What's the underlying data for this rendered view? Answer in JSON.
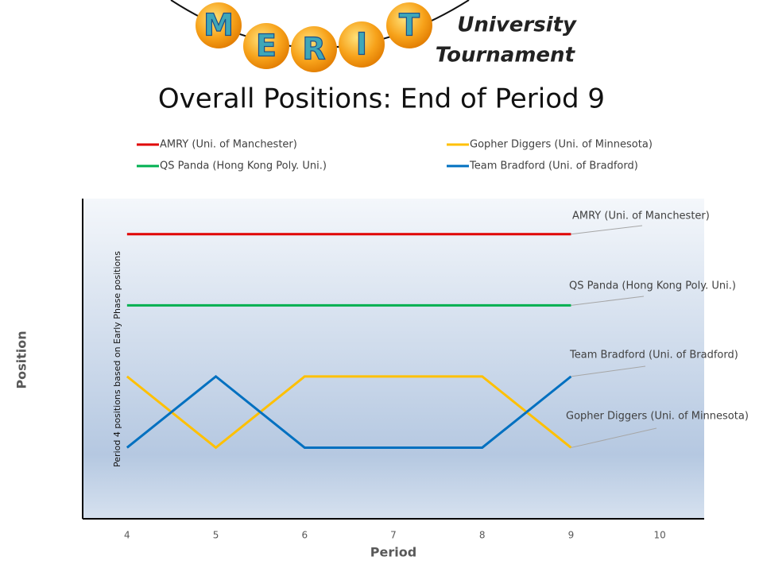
{
  "logo": {
    "letters": [
      "M",
      "E",
      "R",
      "I",
      "T"
    ],
    "caption": [
      "University",
      "Tournament"
    ]
  },
  "chart_data": {
    "type": "line",
    "title": "Overall Positions: End of Period 9",
    "x_label": "Period",
    "y_label": "Position",
    "annotation": "Period 4 positions based on Early Phase positions",
    "x": [
      4,
      5,
      6,
      7,
      8,
      9
    ],
    "xlim": [
      3.5,
      10.5
    ],
    "xticks": [
      4,
      5,
      6,
      7,
      8,
      9,
      10
    ],
    "ylim": [
      5,
      0.5
    ],
    "series": [
      {
        "name": "AMRY (Uni. of Manchester)",
        "color": "#e00000",
        "values": [
          1,
          1,
          1,
          1,
          1,
          1
        ]
      },
      {
        "name": "Gopher Diggers (Uni. of Minnesota)",
        "color": "#ffc000",
        "values": [
          3,
          4,
          3,
          3,
          3,
          4
        ]
      },
      {
        "name": "QS Panda (Hong Kong Poly. Uni.)",
        "color": "#00b050",
        "values": [
          2,
          2,
          2,
          2,
          2,
          2
        ]
      },
      {
        "name": "Team Bradford (Uni. of Bradford)",
        "color": "#0070c0",
        "values": [
          4,
          3,
          4,
          4,
          4,
          3
        ]
      }
    ]
  }
}
